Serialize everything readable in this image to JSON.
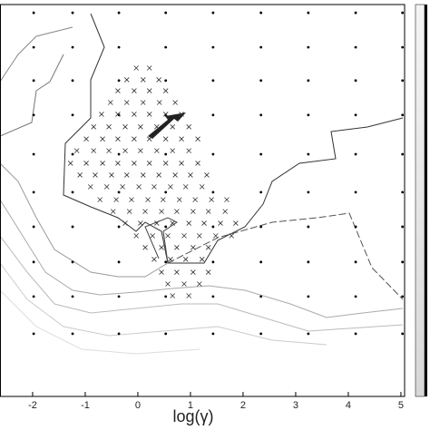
{
  "chart_data": {
    "type": "scatter",
    "xlabel": "log(γ)",
    "xlim": [
      -2.62,
      5.07
    ],
    "ylim": [
      0,
      10
    ],
    "xticks": [
      -2,
      -1,
      0,
      1,
      2,
      3,
      4,
      5
    ],
    "grid_x": [
      -1.98,
      -1.24,
      -0.36,
      0.53,
      1.43,
      2.34,
      3.24,
      4.14,
      5.03
    ],
    "grid_y": [
      9.79,
      8.91,
      8.06,
      7.18,
      6.18,
      5.21,
      4.33,
      3.43,
      2.55,
      1.6
    ],
    "grid_color": "#000000",
    "cross_color": "#333333",
    "cross_x": [
      -0.03,
      0.22,
      -0.21,
      0.1,
      0.4,
      -0.38,
      -0.07,
      0.22,
      0.53,
      -0.52,
      -0.21,
      0.1,
      0.41,
      0.71,
      -0.69,
      -0.38,
      -0.07,
      0.22,
      0.53,
      0.83,
      -0.84,
      -0.55,
      -0.24,
      0.05,
      0.36,
      0.66,
      0.97,
      -0.98,
      -0.67,
      -0.38,
      -0.07,
      0.22,
      0.53,
      0.83,
      1.14,
      -1.16,
      -0.84,
      -0.55,
      -0.24,
      0.05,
      0.36,
      0.66,
      0.97,
      -1.28,
      -0.98,
      -0.67,
      -0.38,
      -0.07,
      0.22,
      0.53,
      0.83,
      1.14,
      -1.1,
      -0.81,
      -0.5,
      -0.21,
      0.1,
      0.4,
      0.71,
      1.0,
      1.31,
      -0.9,
      -0.59,
      -0.29,
      0.02,
      0.31,
      0.62,
      0.91,
      1.22,
      -0.72,
      -0.41,
      -0.12,
      0.19,
      0.48,
      0.79,
      1.09,
      1.4,
      1.69,
      -0.47,
      -0.16,
      0.14,
      0.45,
      0.74,
      1.05,
      1.34,
      1.66,
      -0.24,
      0.05,
      0.36,
      0.66,
      0.97,
      1.26,
      1.57,
      1.86,
      -0.03,
      0.28,
      0.57,
      0.88,
      1.17,
      1.48,
      1.78,
      0.14,
      0.45,
      0.74,
      1.05,
      1.34,
      0.31,
      0.62,
      0.91,
      1.22,
      0.45,
      0.74,
      1.05,
      1.34,
      0.57,
      0.88,
      1.17,
      0.66,
      0.97
    ],
    "cross_y": [
      8.38,
      8.38,
      8.08,
      8.08,
      8.08,
      7.8,
      7.8,
      7.8,
      7.8,
      7.5,
      7.5,
      7.5,
      7.5,
      7.5,
      7.2,
      7.2,
      7.2,
      7.2,
      7.2,
      7.2,
      6.88,
      6.88,
      6.88,
      6.88,
      6.88,
      6.88,
      6.88,
      6.57,
      6.57,
      6.57,
      6.57,
      6.57,
      6.57,
      6.57,
      6.57,
      6.27,
      6.27,
      6.27,
      6.27,
      6.27,
      6.27,
      6.27,
      6.27,
      5.95,
      5.95,
      5.95,
      5.95,
      5.95,
      5.95,
      5.95,
      5.95,
      5.95,
      5.65,
      5.65,
      5.65,
      5.65,
      5.65,
      5.65,
      5.65,
      5.65,
      5.65,
      5.35,
      5.35,
      5.35,
      5.35,
      5.35,
      5.35,
      5.35,
      5.35,
      5.02,
      5.02,
      5.02,
      5.02,
      5.02,
      5.02,
      5.02,
      5.02,
      5.02,
      4.72,
      4.72,
      4.72,
      4.72,
      4.72,
      4.72,
      4.72,
      4.72,
      4.42,
      4.42,
      4.42,
      4.42,
      4.42,
      4.42,
      4.42,
      4.42,
      4.1,
      4.1,
      4.1,
      4.1,
      4.1,
      4.1,
      4.1,
      3.8,
      3.8,
      3.8,
      3.8,
      3.8,
      3.5,
      3.5,
      3.5,
      3.5,
      3.17,
      3.17,
      3.17,
      3.17,
      2.87,
      2.87,
      2.87,
      2.57,
      2.57
    ]
  }
}
